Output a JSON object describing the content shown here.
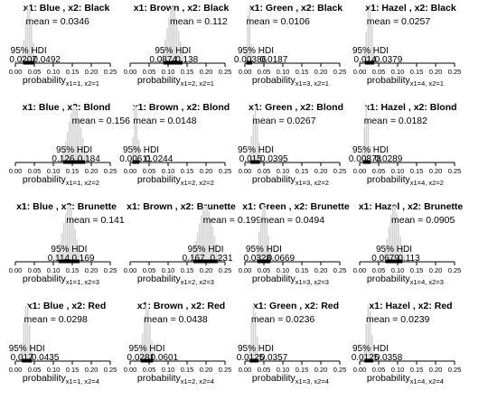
{
  "chart_data": [
    {
      "type": "bar",
      "title": "x1: Blue , x2: Black",
      "subscript": "x1=1, x2=1",
      "mean": "0.0346",
      "hdi_low": "0.0207",
      "hdi_high": "0.0492",
      "center": 0.0346,
      "lo": 0.0207,
      "hi": 0.0492,
      "spread": 0.009
    },
    {
      "type": "bar",
      "title": "x1: Brown , x2: Black",
      "subscript": "x1=2, x2=1",
      "mean": "0.112",
      "hdi_low": "0.0874",
      "hdi_high": "0.138",
      "center": 0.112,
      "lo": 0.0874,
      "hi": 0.138,
      "spread": 0.015
    },
    {
      "type": "bar",
      "title": "x1: Green , x2: Black",
      "subscript": "x1=3, x2=1",
      "mean": "0.0106",
      "hdi_low": "0.00386",
      "hdi_high": "0.0187",
      "center": 0.0106,
      "lo": 0.00386,
      "hi": 0.0187,
      "spread": 0.0045
    },
    {
      "type": "bar",
      "title": "x1: Hazel , x2: Black",
      "subscript": "x1=4, x2=1",
      "mean": "0.0257",
      "hdi_low": "0.014",
      "hdi_high": "0.0379",
      "center": 0.0257,
      "lo": 0.014,
      "hi": 0.0379,
      "spread": 0.0075
    },
    {
      "type": "bar",
      "title": "x1: Blue , x2: Blond",
      "subscript": "x1=1, x2=2",
      "mean": "0.156",
      "hdi_low": "0.126",
      "hdi_high": "0.184",
      "center": 0.156,
      "lo": 0.126,
      "hi": 0.184,
      "spread": 0.017
    },
    {
      "type": "bar",
      "title": "x1: Brown , x2: Blond",
      "subscript": "x1=2, x2=2",
      "mean": "0.0148",
      "hdi_low": "0.00611",
      "hdi_high": "0.0244",
      "center": 0.0148,
      "lo": 0.00611,
      "hi": 0.0244,
      "spread": 0.0055
    },
    {
      "type": "bar",
      "title": "x1: Green , x2: Blond",
      "subscript": "x1=3, x2=2",
      "mean": "0.0267",
      "hdi_low": "0.015",
      "hdi_high": "0.0395",
      "center": 0.0267,
      "lo": 0.015,
      "hi": 0.0395,
      "spread": 0.0075
    },
    {
      "type": "bar",
      "title": "x1: Hazel , x2: Blond",
      "subscript": "x1=4, x2=2",
      "mean": "0.0182",
      "hdi_low": "0.00878",
      "hdi_high": "0.0289",
      "center": 0.0182,
      "lo": 0.00878,
      "hi": 0.0289,
      "spread": 0.006
    },
    {
      "type": "bar",
      "title": "x1: Blue , x2: Brunette",
      "subscript": "x1=1, x2=3",
      "mean": "0.141",
      "hdi_low": "0.114",
      "hdi_high": "0.169",
      "center": 0.141,
      "lo": 0.114,
      "hi": 0.169,
      "spread": 0.016
    },
    {
      "type": "bar",
      "title": "x1: Brown , x2: Brunette",
      "subscript": "x1=2, x2=3",
      "mean": "0.199",
      "hdi_low": "0.167",
      "hdi_high": "0.231",
      "center": 0.199,
      "lo": 0.167,
      "hi": 0.231,
      "spread": 0.019
    },
    {
      "type": "bar",
      "title": "x1: Green , x2: Brunette",
      "subscript": "x1=3, x2=3",
      "mean": "0.0494",
      "hdi_low": "0.0328",
      "hdi_high": "0.0669",
      "center": 0.0494,
      "lo": 0.0328,
      "hi": 0.0669,
      "spread": 0.0105
    },
    {
      "type": "bar",
      "title": "x1: Hazel , x2: Brunette",
      "subscript": "x1=4, x2=3",
      "mean": "0.0905",
      "hdi_low": "0.0679",
      "hdi_high": "0.113",
      "center": 0.0905,
      "lo": 0.0679,
      "hi": 0.113,
      "spread": 0.0135
    },
    {
      "type": "bar",
      "title": "x1: Blue , x2: Red",
      "subscript": "x1=1, x2=4",
      "mean": "0.0298",
      "hdi_low": "0.017",
      "hdi_high": "0.0435",
      "center": 0.0298,
      "lo": 0.017,
      "hi": 0.0435,
      "spread": 0.008
    },
    {
      "type": "bar",
      "title": "x1: Brown , x2: Red",
      "subscript": "x1=2, x2=4",
      "mean": "0.0438",
      "hdi_low": "0.0281",
      "hdi_high": "0.0601",
      "center": 0.0438,
      "lo": 0.0281,
      "hi": 0.0601,
      "spread": 0.0095
    },
    {
      "type": "bar",
      "title": "x1: Green , x2: Red",
      "subscript": "x1=3, x2=4",
      "mean": "0.0236",
      "hdi_low": "0.0125",
      "hdi_high": "0.0357",
      "center": 0.0236,
      "lo": 0.0125,
      "hi": 0.0357,
      "spread": 0.007
    },
    {
      "type": "bar",
      "title": "x1: Hazel , x2: Red",
      "subscript": "x1=4, x2=4",
      "mean": "0.0239",
      "hdi_low": "0.0125",
      "hdi_high": "0.0358",
      "center": 0.0239,
      "lo": 0.0125,
      "hi": 0.0358,
      "spread": 0.007
    }
  ],
  "shared": {
    "xlabel": "probability",
    "mean_prefix": "mean = ",
    "hdi_label": "95% HDI",
    "xlim": [
      0,
      0.25
    ],
    "ticks": [
      0.0,
      0.05,
      0.1,
      0.15,
      0.2,
      0.25
    ],
    "tick_labels": [
      "0.00",
      "0.05",
      "0.10",
      "0.15",
      "0.20",
      "0.25"
    ],
    "colors": {
      "bar_fill": "#d3d3d3",
      "bar_stroke": "#ffffff",
      "hdi_bar": "#000000",
      "text": "#000000",
      "axis": "#000000"
    }
  }
}
